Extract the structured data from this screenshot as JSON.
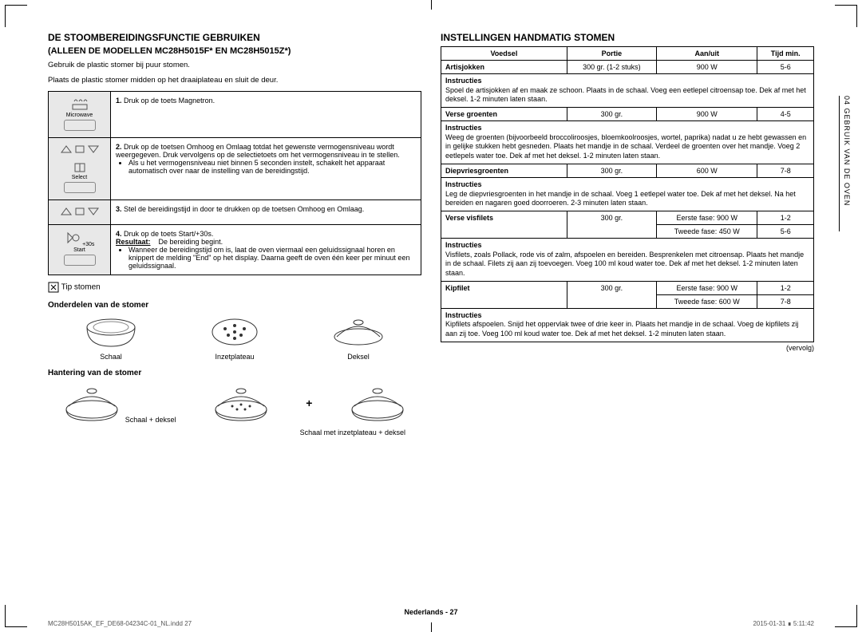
{
  "left": {
    "title": "De stoombereidingsfunctie gebruiken",
    "subtitle": "(Alleen de modellen MC28H5015F* en MC28H5015Z*)",
    "intro1": "Gebruik de plastic stomer bij puur stomen.",
    "intro2": "Plaats de plastic stomer midden op het draaiplateau en sluit de deur.",
    "icons": {
      "microwave": "Microwave",
      "select": "Select",
      "start": "Start",
      "start30": "+30s"
    },
    "steps": [
      {
        "n": "1.",
        "text": "Druk op de toets Magnetron."
      },
      {
        "n": "2.",
        "text": "Druk op de toetsen Omhoog en Omlaag totdat het gewenste vermogensniveau wordt weergegeven. Druk vervolgens op de selectietoets om het vermogensniveau in te stellen.",
        "bullet": "Als u het vermogensniveau niet binnen 5 seconden instelt, schakelt het apparaat automatisch over naar de instelling van de bereidingstijd."
      },
      {
        "n": "3.",
        "text": "Stel de bereidingstijd in door te drukken op de toetsen Omhoog en Omlaag."
      },
      {
        "n": "4.",
        "text": "Druk op de toets Start/+30s.",
        "result_label": "Resultaat:",
        "result": "De bereiding begint.",
        "bullet": "Wanneer de bereidingstijd om is, laat de oven viermaal een geluidssignaal horen en knippert de melding \"End\" op het display. Daarna geeft de oven één keer per minuut een geluidssignaal."
      }
    ],
    "tip": "Tip stomen",
    "parts_title": "Onderdelen van de stomer",
    "parts": [
      "Schaal",
      "Inzetplateau",
      "Deksel"
    ],
    "handling_title": "Hantering van de stomer",
    "handling": [
      "Schaal + deksel",
      "Schaal met inzetplateau + deksel"
    ]
  },
  "right": {
    "title": "Instellingen handmatig stomen",
    "headers": [
      "Voedsel",
      "Portie",
      "Aan/uit",
      "Tijd min."
    ],
    "rows": [
      {
        "food": "Artisjokken",
        "portion": "300 gr. (1-2 stuks)",
        "power": "900 W",
        "time": "5-6",
        "instr_label": "Instructies",
        "instr": "Spoel de artisjokken af en maak ze schoon. Plaats in de schaal. Voeg een eetlepel citroensap toe. Dek af met het deksel. 1-2 minuten laten staan."
      },
      {
        "food": "Verse groenten",
        "portion": "300 gr.",
        "power": "900 W",
        "time": "4-5",
        "instr_label": "Instructies",
        "instr": "Weeg de groenten (bijvoorbeeld broccoliroosjes, bloemkoolroosjes, wortel, paprika) nadat u ze hebt gewassen en in gelijke stukken hebt gesneden. Plaats het mandje in de schaal. Verdeel de groenten over het mandje. Voeg 2 eetlepels water toe. Dek af met het deksel. 1-2 minuten laten staan."
      },
      {
        "food": "Diepvriesgroenten",
        "portion": "300 gr.",
        "power": "600 W",
        "time": "7-8",
        "instr_label": "Instructies",
        "instr": "Leg de diepvriesgroenten in het mandje in de schaal. Voeg 1 eetlepel water toe. Dek af met het deksel. Na het bereiden en nagaren goed doorroeren. 2-3 minuten laten staan."
      },
      {
        "food": "Verse visfilets",
        "portion": "300 gr.",
        "power": "Eerste fase: 900 W",
        "time": "1-2",
        "power2": "Tweede fase: 450 W",
        "time2": "5-6",
        "instr_label": "Instructies",
        "instr": "Visfilets, zoals Pollack, rode vis of zalm, afspoelen en bereiden. Besprenkelen met citroensap. Plaats het mandje in de schaal. Filets zij aan zij toevoegen. Voeg 100 ml koud water toe. Dek af met het deksel. 1-2 minuten laten staan."
      },
      {
        "food": "Kipfilet",
        "portion": "300 gr.",
        "power": "Eerste fase: 900 W",
        "time": "1-2",
        "power2": "Tweede fase: 600 W",
        "time2": "7-8",
        "instr_label": "Instructies",
        "instr": "Kipfilets afspoelen. Snijd het oppervlak twee of drie keer in. Plaats het mandje in de schaal. Voeg de kipfilets zij aan zij toe. Voeg 100 ml koud water toe. Dek af met het deksel. 1-2 minuten laten staan."
      }
    ],
    "vervolg": "(vervolg)",
    "side_tab": "04  GEBRUIK VAN DE OVEN"
  },
  "footer": {
    "center": "Nederlands - 27",
    "left": "MC28H5015AK_EF_DE68-04234C-01_NL.indd   27",
    "right": "2015-01-31   ∎ 5:11:42"
  },
  "colors": {
    "border": "#000000",
    "shade": "#e8e8e8"
  }
}
